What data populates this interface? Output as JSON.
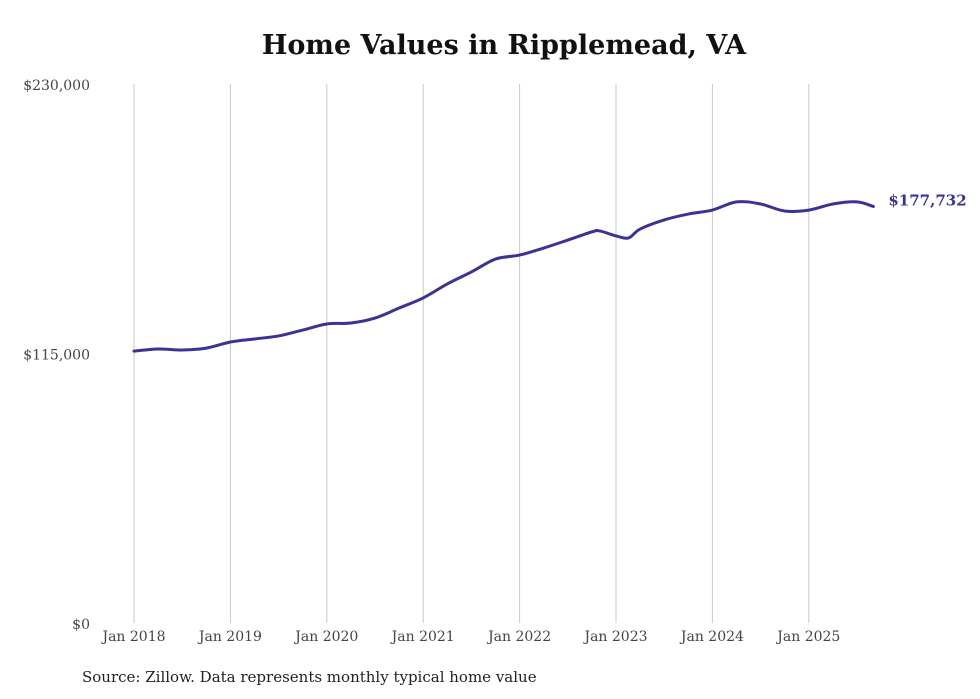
{
  "chart_data": {
    "type": "line",
    "title": "Home Values in Ripplemead, VA",
    "source": "Source: Zillow. Data represents monthly typical home value",
    "xlabel": "",
    "ylabel": "",
    "ylim": [
      0,
      230000
    ],
    "xlim": [
      2018.0,
      2025.75
    ],
    "grid": "vertical",
    "y_ticks": [
      {
        "value": 0,
        "label": "$0"
      },
      {
        "value": 115000,
        "label": "$115,000"
      },
      {
        "value": 230000,
        "label": "$230,000"
      }
    ],
    "x_ticks": [
      {
        "value": 2018,
        "label": "Jan 2018"
      },
      {
        "value": 2019,
        "label": "Jan 2019"
      },
      {
        "value": 2020,
        "label": "Jan 2020"
      },
      {
        "value": 2021,
        "label": "Jan 2021"
      },
      {
        "value": 2022,
        "label": "Jan 2022"
      },
      {
        "value": 2023,
        "label": "Jan 2023"
      },
      {
        "value": 2024,
        "label": "Jan 2024"
      },
      {
        "value": 2025,
        "label": "Jan 2025"
      }
    ],
    "series": [
      {
        "name": "Typical home value",
        "color": "#3a3396",
        "end_label": "$177,732",
        "x": [
          2018.0,
          2018.25,
          2018.5,
          2018.75,
          2019.0,
          2019.25,
          2019.5,
          2019.75,
          2020.0,
          2020.25,
          2020.5,
          2020.75,
          2021.0,
          2021.25,
          2021.5,
          2021.75,
          2022.0,
          2022.25,
          2022.5,
          2022.75,
          2022.83,
          2023.0,
          2023.13,
          2023.25,
          2023.5,
          2023.75,
          2024.0,
          2024.25,
          2024.5,
          2024.75,
          2025.0,
          2025.25,
          2025.5,
          2025.67
        ],
        "values": [
          116000,
          116900,
          116500,
          117300,
          119900,
          121200,
          122500,
          125000,
          127600,
          128000,
          130100,
          134400,
          138700,
          144700,
          149800,
          155300,
          157000,
          160000,
          163400,
          166900,
          167300,
          165200,
          164300,
          168100,
          172000,
          174500,
          176200,
          179700,
          178800,
          175800,
          176200,
          178800,
          179700,
          177732
        ]
      }
    ]
  }
}
